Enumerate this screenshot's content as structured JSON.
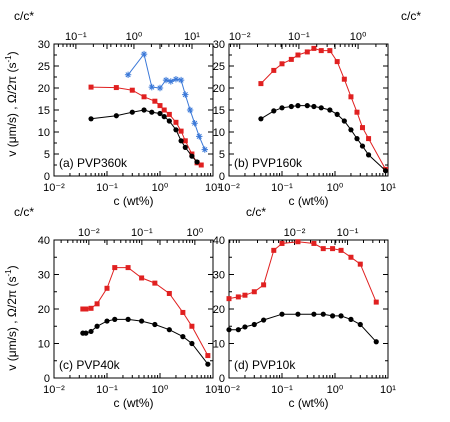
{
  "figure": {
    "ylabel_text": "v (μm/s) , Ω/2π (s",
    "ylabel_sup": "-1",
    "ylabel_close": ")",
    "xlabel": "c (wt%)",
    "top_axis_label": "c/c*"
  },
  "chart_data": [
    {
      "type": "line",
      "panel_label": "(a) PVP360k",
      "xlabel": "c (wt%)",
      "x_scale": "log",
      "xlim": [
        0.01,
        10
      ],
      "ylim": [
        0,
        30
      ],
      "yticks": [
        0,
        5,
        10,
        15,
        20,
        25,
        30
      ],
      "top_axis": {
        "label": "c/c*",
        "ticks": [
          0.1,
          1,
          10
        ],
        "tick_labels": [
          "10⁻¹",
          "10⁰",
          "10¹"
        ],
        "min": 0.042,
        "max": 23
      },
      "series": [
        {
          "color": "#e02020",
          "marker": "square",
          "points": [
            [
              0.05,
              20.2
            ],
            [
              0.15,
              20.1
            ],
            [
              0.3,
              19.5
            ],
            [
              0.5,
              18.0
            ],
            [
              0.8,
              17.0
            ],
            [
              1.0,
              16.0
            ],
            [
              1.2,
              15.0
            ],
            [
              1.5,
              14.0
            ],
            [
              2.0,
              12.2
            ],
            [
              2.5,
              10.2
            ],
            [
              3.0,
              8.0
            ],
            [
              4.0,
              5.0
            ],
            [
              5.0,
              3.0
            ],
            [
              6.0,
              2.5
            ]
          ]
        },
        {
          "color": "#000000",
          "marker": "circle",
          "points": [
            [
              0.05,
              13.0
            ],
            [
              0.15,
              13.7
            ],
            [
              0.3,
              14.5
            ],
            [
              0.5,
              15.0
            ],
            [
              0.7,
              14.5
            ],
            [
              1.0,
              14.2
            ],
            [
              1.2,
              13.5
            ],
            [
              1.5,
              12.5
            ],
            [
              2.0,
              10.5
            ],
            [
              2.5,
              8.0
            ],
            [
              3.0,
              6.5
            ],
            [
              4.0,
              4.5
            ],
            [
              5.0,
              3.2
            ]
          ]
        },
        {
          "color": "#3a78d8",
          "marker": "star",
          "points": [
            [
              0.25,
              23.0
            ],
            [
              0.5,
              27.7
            ],
            [
              0.7,
              20.2
            ],
            [
              1.0,
              20.0
            ],
            [
              1.3,
              21.8
            ],
            [
              1.6,
              21.5
            ],
            [
              2.0,
              22.0
            ],
            [
              2.5,
              21.8
            ],
            [
              3.0,
              18.5
            ],
            [
              3.7,
              15.0
            ],
            [
              4.5,
              12.0
            ],
            [
              5.5,
              9.0
            ],
            [
              7.0,
              6.0
            ]
          ]
        }
      ]
    },
    {
      "type": "line",
      "panel_label": "(b) PVP160k",
      "xlabel": "c (wt%)",
      "x_scale": "log",
      "xlim": [
        0.01,
        10
      ],
      "ylim": [
        0,
        30
      ],
      "yticks": [
        0,
        5,
        10,
        15,
        20,
        25,
        30
      ],
      "top_axis": {
        "label": "c/c*",
        "ticks": [
          0.01,
          0.1,
          1
        ],
        "tick_labels": [
          "10⁻²",
          "10⁻¹",
          "10⁰"
        ],
        "min": 0.0066,
        "max": 3.2
      },
      "series": [
        {
          "color": "#e02020",
          "marker": "square",
          "points": [
            [
              0.04,
              21.0
            ],
            [
              0.07,
              24.0
            ],
            [
              0.1,
              25.5
            ],
            [
              0.15,
              26.5
            ],
            [
              0.2,
              27.5
            ],
            [
              0.3,
              28.2
            ],
            [
              0.4,
              29.0
            ],
            [
              0.55,
              28.5
            ],
            [
              0.8,
              28.5
            ],
            [
              1.1,
              26.0
            ],
            [
              1.5,
              22.0
            ],
            [
              2.0,
              18.0
            ],
            [
              2.6,
              14.5
            ],
            [
              3.3,
              11.0
            ],
            [
              4.3,
              8.5
            ],
            [
              9.0,
              1.5
            ]
          ]
        },
        {
          "color": "#000000",
          "marker": "circle",
          "points": [
            [
              0.04,
              13.0
            ],
            [
              0.07,
              14.8
            ],
            [
              0.1,
              15.5
            ],
            [
              0.15,
              15.8
            ],
            [
              0.2,
              16.0
            ],
            [
              0.3,
              16.0
            ],
            [
              0.4,
              15.8
            ],
            [
              0.55,
              15.5
            ],
            [
              0.8,
              15.0
            ],
            [
              1.1,
              14.0
            ],
            [
              1.5,
              12.5
            ],
            [
              2.0,
              10.5
            ],
            [
              2.6,
              8.5
            ],
            [
              3.3,
              6.8
            ],
            [
              4.3,
              4.8
            ],
            [
              9.0,
              1.2
            ]
          ]
        }
      ]
    },
    {
      "type": "line",
      "panel_label": "(c) PVP40k",
      "xlabel": "c (wt%)",
      "x_scale": "log",
      "xlim": [
        0.01,
        10
      ],
      "ylim": [
        0,
        40
      ],
      "yticks": [
        0,
        10,
        20,
        30,
        40
      ],
      "top_axis": {
        "label": "c/c*",
        "ticks": [
          0.01,
          0.1,
          1
        ],
        "tick_labels": [
          "10⁻²",
          "10⁻¹",
          "10⁰"
        ],
        "min": 0.0022,
        "max": 2.2
      },
      "series": [
        {
          "color": "#e02020",
          "marker": "square",
          "points": [
            [
              0.035,
              20.0
            ],
            [
              0.04,
              20.0
            ],
            [
              0.05,
              20.2
            ],
            [
              0.065,
              21.5
            ],
            [
              0.1,
              26.0
            ],
            [
              0.14,
              32.0
            ],
            [
              0.25,
              32.0
            ],
            [
              0.45,
              29.0
            ],
            [
              0.8,
              27.5
            ],
            [
              1.5,
              24.5
            ],
            [
              2.7,
              19.0
            ],
            [
              4.0,
              15.0
            ],
            [
              8.0,
              6.5
            ]
          ]
        },
        {
          "color": "#000000",
          "marker": "circle",
          "points": [
            [
              0.035,
              13.0
            ],
            [
              0.04,
              13.0
            ],
            [
              0.05,
              13.5
            ],
            [
              0.065,
              15.0
            ],
            [
              0.1,
              16.5
            ],
            [
              0.14,
              17.0
            ],
            [
              0.25,
              17.0
            ],
            [
              0.45,
              16.5
            ],
            [
              0.8,
              15.5
            ],
            [
              1.5,
              14.0
            ],
            [
              2.7,
              12.0
            ],
            [
              4.0,
              10.0
            ],
            [
              8.0,
              4.0
            ]
          ]
        }
      ]
    },
    {
      "type": "line",
      "panel_label": "(d) PVP10k",
      "xlabel": "c (wt%)",
      "x_scale": "log",
      "xlim": [
        0.01,
        10
      ],
      "ylim": [
        0,
        40
      ],
      "yticks": [
        0,
        10,
        20,
        30,
        40
      ],
      "top_axis": {
        "label": "c/c*",
        "ticks": [
          0.01,
          0.1
        ],
        "tick_labels": [
          "10⁻²",
          "10⁻¹"
        ],
        "min": 0.00058,
        "max": 0.58
      },
      "series": [
        {
          "color": "#e02020",
          "marker": "square",
          "points": [
            [
              0.01,
              23.0
            ],
            [
              0.015,
              23.5
            ],
            [
              0.02,
              24.0
            ],
            [
              0.03,
              25.0
            ],
            [
              0.045,
              27.0
            ],
            [
              0.07,
              37.0
            ],
            [
              0.1,
              39.0
            ],
            [
              0.2,
              39.5
            ],
            [
              0.4,
              39.0
            ],
            [
              0.6,
              37.5
            ],
            [
              0.9,
              37.5
            ],
            [
              1.3,
              37.0
            ],
            [
              2.0,
              35.0
            ],
            [
              3.0,
              33.0
            ],
            [
              6.0,
              22.0
            ]
          ]
        },
        {
          "color": "#000000",
          "marker": "circle",
          "points": [
            [
              0.01,
              14.0
            ],
            [
              0.015,
              14.0
            ],
            [
              0.02,
              14.8
            ],
            [
              0.03,
              15.5
            ],
            [
              0.045,
              16.8
            ],
            [
              0.1,
              18.5
            ],
            [
              0.2,
              18.5
            ],
            [
              0.4,
              18.5
            ],
            [
              0.6,
              18.5
            ],
            [
              0.9,
              18.0
            ],
            [
              1.3,
              18.0
            ],
            [
              2.0,
              17.0
            ],
            [
              3.0,
              15.5
            ],
            [
              6.0,
              10.5
            ]
          ]
        }
      ]
    }
  ]
}
